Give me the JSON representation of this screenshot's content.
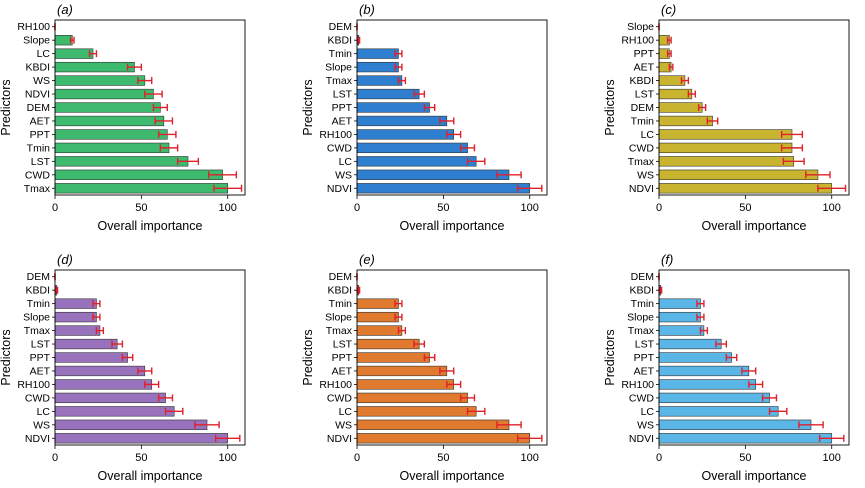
{
  "figure": {
    "error_bar_color": "#e0202a",
    "axis_label_x": "Overall importance",
    "axis_label_y": "Predictors"
  },
  "chart_data": [
    {
      "type": "bar",
      "orientation": "horizontal",
      "panel_label": "(a)",
      "color": "#3dba6e",
      "xlabel": "Overall importance",
      "ylabel": "Predictors",
      "xlim": [
        0,
        110
      ],
      "xticks": [
        0,
        50,
        100
      ],
      "categories": [
        "RH100",
        "Slope",
        "LC",
        "KBDI",
        "WS",
        "NDVI",
        "DEM",
        "AET",
        "PPT",
        "Tmin",
        "LST",
        "CWD",
        "Tmax"
      ],
      "values": [
        0,
        10,
        22,
        46,
        52,
        57,
        61,
        63,
        65,
        66,
        77,
        97,
        100
      ],
      "errors": [
        0,
        1,
        2,
        4,
        4,
        5,
        4,
        5,
        5,
        5,
        6,
        8,
        8
      ]
    },
    {
      "type": "bar",
      "orientation": "horizontal",
      "panel_label": "(b)",
      "color": "#2f7fd0",
      "xlabel": "Overall importance",
      "ylabel": "Predictors",
      "xlim": [
        0,
        110
      ],
      "xticks": [
        0,
        50,
        100
      ],
      "categories": [
        "DEM",
        "KBDI",
        "Tmin",
        "Slope",
        "Tmax",
        "LST",
        "PPT",
        "AET",
        "RH100",
        "CWD",
        "LC",
        "WS",
        "NDVI"
      ],
      "values": [
        0,
        1,
        24,
        24,
        26,
        36,
        42,
        52,
        56,
        64,
        69,
        88,
        100
      ],
      "errors": [
        0,
        0.5,
        2,
        2,
        2,
        3,
        3,
        4,
        4,
        4,
        5,
        7,
        7
      ]
    },
    {
      "type": "bar",
      "orientation": "horizontal",
      "panel_label": "(c)",
      "color": "#c8b42e",
      "xlabel": "Overall importance",
      "ylabel": "Predictors",
      "xlim": [
        0,
        110
      ],
      "xticks": [
        0,
        50,
        100
      ],
      "categories": [
        "Slope",
        "RH100",
        "PPT",
        "AET",
        "KBDI",
        "LST",
        "DEM",
        "Tmin",
        "LC",
        "CWD",
        "Tmax",
        "WS",
        "NDVI"
      ],
      "values": [
        0,
        6,
        6,
        7,
        15,
        19,
        25,
        31,
        77,
        77,
        78,
        92,
        100
      ],
      "errors": [
        0,
        1,
        1,
        1,
        2,
        2,
        2,
        3,
        6,
        6,
        6,
        7,
        8
      ]
    },
    {
      "type": "bar",
      "orientation": "horizontal",
      "panel_label": "(d)",
      "color": "#9872bd",
      "xlabel": "Overall importance",
      "ylabel": "Predictors",
      "xlim": [
        0,
        110
      ],
      "xticks": [
        0,
        50,
        100
      ],
      "categories": [
        "DEM",
        "KBDI",
        "Tmin",
        "Slope",
        "Tmax",
        "LST",
        "PPT",
        "AET",
        "RH100",
        "CWD",
        "LC",
        "WS",
        "NDVI"
      ],
      "values": [
        0,
        1,
        24,
        24,
        26,
        36,
        42,
        52,
        56,
        64,
        69,
        88,
        100
      ],
      "errors": [
        0,
        0.5,
        2,
        2,
        2,
        3,
        3,
        4,
        4,
        4,
        5,
        7,
        7
      ]
    },
    {
      "type": "bar",
      "orientation": "horizontal",
      "panel_label": "(e)",
      "color": "#e07a2e",
      "xlabel": "Overall importance",
      "ylabel": "Predictors",
      "xlim": [
        0,
        110
      ],
      "xticks": [
        0,
        50,
        100
      ],
      "categories": [
        "DEM",
        "KBDI",
        "Tmin",
        "Slope",
        "Tmax",
        "LST",
        "PPT",
        "AET",
        "RH100",
        "CWD",
        "LC",
        "WS",
        "NDVI"
      ],
      "values": [
        0,
        1,
        24,
        24,
        26,
        36,
        42,
        52,
        56,
        64,
        69,
        88,
        100
      ],
      "errors": [
        0,
        0.5,
        2,
        2,
        2,
        3,
        3,
        4,
        4,
        4,
        5,
        7,
        7
      ]
    },
    {
      "type": "bar",
      "orientation": "horizontal",
      "panel_label": "(f)",
      "color": "#5ab6e6",
      "xlabel": "Overall importance",
      "ylabel": "Predictors",
      "xlim": [
        0,
        110
      ],
      "xticks": [
        0,
        50,
        100
      ],
      "categories": [
        "DEM",
        "KBDI",
        "Tmin",
        "Slope",
        "Tmax",
        "LST",
        "PPT",
        "AET",
        "RH100",
        "CWD",
        "LC",
        "WS",
        "NDVI"
      ],
      "values": [
        0,
        1,
        24,
        24,
        26,
        36,
        42,
        52,
        56,
        64,
        69,
        88,
        100
      ],
      "errors": [
        0,
        0.5,
        2,
        2,
        2,
        3,
        3,
        4,
        4,
        4,
        5,
        7,
        7
      ]
    }
  ]
}
